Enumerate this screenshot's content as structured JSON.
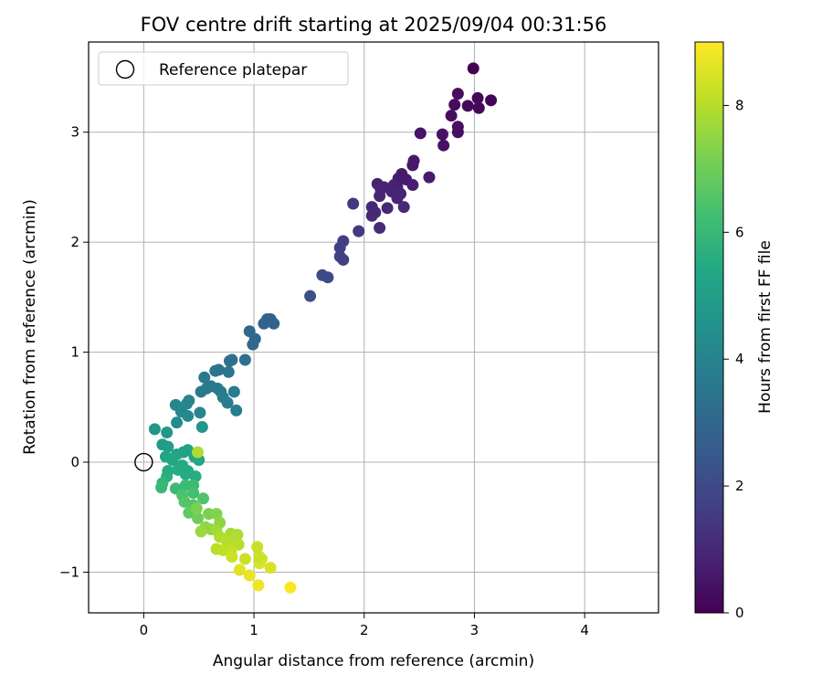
{
  "chart_data": {
    "type": "scatter",
    "title": "FOV centre drift starting at 2025/09/04 00:31:56",
    "xlabel": "Angular distance from reference (arcmin)",
    "ylabel": "Rotation from reference (arcmin)",
    "xlim": [
      -0.5,
      4.67
    ],
    "ylim": [
      -1.37,
      3.82
    ],
    "xticks": [
      0,
      1,
      2,
      3,
      4
    ],
    "yticks": [
      -1,
      0,
      1,
      2,
      3
    ],
    "grid": true,
    "legend": {
      "placement": "top-left",
      "entries": [
        "Reference platepar"
      ]
    },
    "reference_point": {
      "x": 0,
      "y": 0
    },
    "colorbar": {
      "label": "Hours from first FF file",
      "range": [
        0,
        9
      ],
      "ticks": [
        0,
        2,
        4,
        6,
        8
      ],
      "colormap": "viridis"
    },
    "series": [
      {
        "points": [
          [
            2.99,
            3.58
          ],
          [
            3.15,
            3.29
          ],
          [
            3.03,
            3.31
          ],
          [
            2.94,
            3.24
          ],
          [
            3.04,
            3.22
          ],
          [
            2.82,
            3.25
          ],
          [
            2.85,
            3.35
          ],
          [
            2.79,
            3.15
          ],
          [
            2.85,
            3.05
          ],
          [
            2.85,
            3.0
          ],
          [
            2.71,
            2.98
          ],
          [
            2.72,
            2.88
          ],
          [
            2.51,
            2.99
          ],
          [
            2.45,
            2.74
          ],
          [
            2.44,
            2.7
          ],
          [
            2.59,
            2.59
          ],
          [
            2.34,
            2.62
          ],
          [
            2.31,
            2.58
          ],
          [
            2.38,
            2.57
          ],
          [
            2.3,
            2.5
          ],
          [
            2.27,
            2.52
          ],
          [
            2.44,
            2.52
          ],
          [
            2.12,
            2.53
          ],
          [
            2.18,
            2.5
          ],
          [
            2.15,
            2.48
          ],
          [
            2.25,
            2.46
          ],
          [
            2.33,
            2.44
          ],
          [
            2.14,
            2.42
          ],
          [
            2.3,
            2.4
          ],
          [
            2.07,
            2.32
          ],
          [
            2.21,
            2.31
          ],
          [
            2.36,
            2.32
          ],
          [
            2.1,
            2.27
          ],
          [
            2.07,
            2.24
          ],
          [
            2.14,
            2.13
          ],
          [
            1.9,
            2.35
          ],
          [
            1.95,
            2.1
          ],
          [
            1.81,
            2.01
          ],
          [
            1.78,
            1.95
          ],
          [
            1.78,
            1.87
          ],
          [
            1.81,
            1.84
          ],
          [
            1.62,
            1.7
          ],
          [
            1.67,
            1.68
          ],
          [
            1.51,
            1.51
          ],
          [
            1.12,
            1.3
          ],
          [
            1.15,
            1.3
          ],
          [
            1.09,
            1.26
          ],
          [
            1.18,
            1.26
          ],
          [
            0.96,
            1.19
          ],
          [
            1.01,
            1.12
          ],
          [
            0.99,
            1.07
          ],
          [
            0.8,
            0.93
          ],
          [
            0.78,
            0.92
          ],
          [
            0.92,
            0.93
          ],
          [
            0.68,
            0.84
          ],
          [
            0.65,
            0.83
          ],
          [
            0.77,
            0.82
          ],
          [
            0.55,
            0.77
          ],
          [
            0.61,
            0.69
          ],
          [
            0.57,
            0.67
          ],
          [
            0.67,
            0.67
          ],
          [
            0.52,
            0.64
          ],
          [
            0.7,
            0.64
          ],
          [
            0.82,
            0.64
          ],
          [
            0.72,
            0.59
          ],
          [
            0.41,
            0.56
          ],
          [
            0.39,
            0.53
          ],
          [
            0.29,
            0.52
          ],
          [
            0.76,
            0.54
          ],
          [
            0.84,
            0.47
          ],
          [
            0.34,
            0.46
          ],
          [
            0.51,
            0.45
          ],
          [
            0.4,
            0.42
          ],
          [
            0.3,
            0.36
          ],
          [
            0.1,
            0.3
          ],
          [
            0.21,
            0.27
          ],
          [
            0.53,
            0.32
          ],
          [
            0.17,
            0.16
          ],
          [
            0.22,
            0.14
          ],
          [
            0.36,
            0.09
          ],
          [
            0.4,
            0.11
          ],
          [
            0.3,
            0.07
          ],
          [
            0.2,
            0.05
          ],
          [
            0.26,
            0.02
          ],
          [
            0.46,
            0.05
          ],
          [
            0.5,
            0.02
          ],
          [
            0.35,
            -0.03
          ],
          [
            0.31,
            -0.07
          ],
          [
            0.22,
            -0.08
          ],
          [
            0.4,
            -0.08
          ],
          [
            0.38,
            -0.11
          ],
          [
            0.47,
            -0.13
          ],
          [
            0.21,
            -0.13
          ],
          [
            0.49,
            0.09
          ],
          [
            0.17,
            -0.19
          ],
          [
            0.16,
            -0.23
          ],
          [
            0.29,
            -0.24
          ],
          [
            0.38,
            -0.21
          ],
          [
            0.45,
            -0.21
          ],
          [
            0.45,
            -0.28
          ],
          [
            0.35,
            -0.3
          ],
          [
            0.54,
            -0.33
          ],
          [
            0.37,
            -0.36
          ],
          [
            0.45,
            -0.39
          ],
          [
            0.41,
            -0.46
          ],
          [
            0.49,
            -0.51
          ],
          [
            0.48,
            -0.42
          ],
          [
            0.59,
            -0.47
          ],
          [
            0.66,
            -0.47
          ],
          [
            0.69,
            -0.55
          ],
          [
            0.56,
            -0.59
          ],
          [
            0.61,
            -0.61
          ],
          [
            0.52,
            -0.63
          ],
          [
            0.66,
            -0.62
          ],
          [
            0.79,
            -0.65
          ],
          [
            0.85,
            -0.66
          ],
          [
            0.69,
            -0.68
          ],
          [
            0.75,
            -0.71
          ],
          [
            0.8,
            -0.74
          ],
          [
            0.86,
            -0.75
          ],
          [
            0.66,
            -0.79
          ],
          [
            0.72,
            -0.8
          ],
          [
            0.79,
            -0.81
          ],
          [
            1.03,
            -0.77
          ],
          [
            0.8,
            -0.86
          ],
          [
            0.92,
            -0.88
          ],
          [
            1.07,
            -0.88
          ],
          [
            1.05,
            -0.92
          ],
          [
            1.15,
            -0.96
          ],
          [
            0.87,
            -0.98
          ],
          [
            0.96,
            -1.03
          ],
          [
            1.04,
            -1.12
          ],
          [
            1.33,
            -1.14
          ],
          [
            1.05,
            -0.86
          ]
        ],
        "hours": [
          0.0,
          0.1,
          0.15,
          0.2,
          0.2,
          0.25,
          0.3,
          0.3,
          0.35,
          0.35,
          0.4,
          0.4,
          0.45,
          0.6,
          0.6,
          0.7,
          0.65,
          0.7,
          0.7,
          0.75,
          0.8,
          0.75,
          0.85,
          0.85,
          0.9,
          0.9,
          0.9,
          0.95,
          0.95,
          1.0,
          1.0,
          1.0,
          1.05,
          1.05,
          1.1,
          1.45,
          1.5,
          1.6,
          1.7,
          1.75,
          1.75,
          1.95,
          2.0,
          2.2,
          2.8,
          2.85,
          2.85,
          2.85,
          3.0,
          3.05,
          3.05,
          3.25,
          3.3,
          3.3,
          3.5,
          3.5,
          3.5,
          3.6,
          3.65,
          3.65,
          3.65,
          3.7,
          3.7,
          3.7,
          3.75,
          4.0,
          4.05,
          4.1,
          3.8,
          3.8,
          4.15,
          4.15,
          4.2,
          4.3,
          4.7,
          4.8,
          4.7,
          4.9,
          5.0,
          5.1,
          5.15,
          5.2,
          5.3,
          5.35,
          5.3,
          5.35,
          5.45,
          5.5,
          5.5,
          5.5,
          5.5,
          5.55,
          5.6,
          7.9,
          5.9,
          6.0,
          6.1,
          6.1,
          6.15,
          6.3,
          6.4,
          6.5,
          6.55,
          6.6,
          6.75,
          7.0,
          7.2,
          7.2,
          7.3,
          7.45,
          7.5,
          7.55,
          7.65,
          7.7,
          7.8,
          7.9,
          7.9,
          8.0,
          8.0,
          8.0,
          8.05,
          8.1,
          8.2,
          8.25,
          8.3,
          8.3,
          8.4,
          8.5,
          8.5,
          8.6,
          8.7,
          8.8,
          8.95,
          8.3
        ]
      }
    ]
  }
}
